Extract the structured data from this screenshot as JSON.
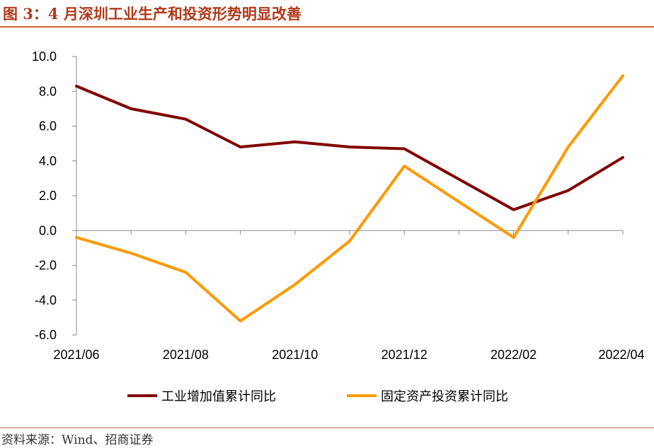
{
  "figure": {
    "title": "图 3：4 月深圳工业生产和投资形势明显改善",
    "source": "资料来源：Wind、招商证券"
  },
  "chart_data": {
    "type": "line",
    "x": [
      "2021/06",
      "2021/07",
      "2021/08",
      "2021/09",
      "2021/10",
      "2021/11",
      "2021/12",
      "2022/01",
      "2022/02",
      "2022/03",
      "2022/04"
    ],
    "x_tick_labels": [
      "2021/06",
      "2021/08",
      "2021/10",
      "2021/12",
      "2022/02",
      "2022/04"
    ],
    "ylim": [
      -6.0,
      10.0
    ],
    "y_ticks": [
      "10.0",
      "8.0",
      "6.0",
      "4.0",
      "2.0",
      "0.0",
      "-2.0",
      "-4.0",
      "-6.0"
    ],
    "y_tick_values": [
      10,
      8,
      6,
      4,
      2,
      0,
      -2,
      -4,
      -6
    ],
    "grid": false,
    "legend_position": "bottom",
    "series": [
      {
        "name": "工业增加值累计同比",
        "color": "#800000",
        "values": [
          8.3,
          7.0,
          6.4,
          4.8,
          5.1,
          4.8,
          4.7,
          null,
          1.2,
          2.3,
          4.2
        ]
      },
      {
        "name": "固定资产投资累计同比",
        "color": "#ff9900",
        "values": [
          -0.4,
          -1.3,
          -2.4,
          -5.2,
          -3.1,
          -0.6,
          3.7,
          null,
          -0.4,
          4.8,
          8.9
        ]
      }
    ]
  }
}
